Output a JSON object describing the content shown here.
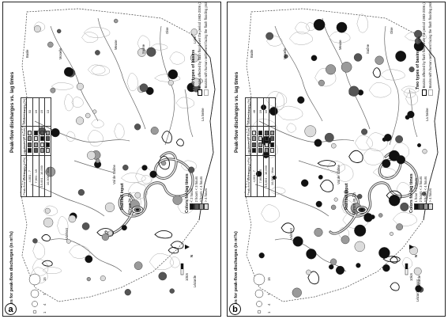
{
  "panels": [
    {
      "id": "a",
      "letter": "a",
      "legend_title": "Peak-flow discharges vs. lag times",
      "rainfall_title": "Rainfall input",
      "rainfall_value": "40mm in 1h",
      "basins_title": "Two types of basins",
      "basins_items": [
        "Basins affected by flash flood over the period 1983-2006 (38)",
        "Basins with human settlement facing the flash flooding problem (148)"
      ],
      "table": {
        "header": [
          "Peak-flow discharges (m³/s)",
          "Lag times (in hours)",
          "Studied basins (%)"
        ],
        "rows": [
          [
            "4,001 - 7",
            "",
            "53"
          ],
          [
            "7,901 - 15",
            "",
            "19"
          ],
          [
            "15,001 - 10,000",
            "",
            "15"
          ],
          [
            "10,000 - Max",
            "",
            "13"
          ]
        ]
      },
      "colors_title": "Colors for lag times",
      "colors_items": [
        "< 2 hours",
        "2 hours < 3 hours",
        "3 hours < 4 hours",
        "> 4 hours"
      ],
      "values_title": "Values for peak-flow discharges (in m³/s)",
      "values_items": [
        "15",
        "7",
        "4",
        "1"
      ],
      "places": [
        "Basle",
        "Moselle",
        "Meuse",
        "Saône",
        "Loire",
        "Val de Saône",
        "Lézarde",
        "Valmont",
        "La Seine",
        "Oise"
      ],
      "north": "N",
      "scale": "10km"
    },
    {
      "id": "b",
      "letter": "b",
      "legend_title": "Peak-flow discharges vs. lag times",
      "rainfall_title": "Rainfall input",
      "rainfall_value": "90mm in 1h",
      "basins_title": "Two types of basins",
      "basins_items": [
        "Basins affected by flash flood over the period 1983-2006 (38)",
        "Basins with human settlement facing the flash flooding problem (148)"
      ],
      "table": {
        "header": [
          "Peak-flow discharges (m³/s)",
          "Lag times (in hours)",
          "Studied basins (%)"
        ],
        "rows": [
          [
            "4,001 - 7",
            "",
            "48"
          ],
          [
            "7,901 - 15",
            "",
            "19"
          ],
          [
            "15,001 - 10,000",
            "",
            "10"
          ],
          [
            "10,000 - Max",
            "",
            "23"
          ]
        ]
      },
      "colors_title": "Colors for lag times",
      "colors_items": [
        "1 hour < 2 hours",
        "2 hours < 3 hours",
        "3 hours < 4 hours",
        "> 4 hours"
      ],
      "values_title": "Values for peak-flow discharges (in m³/s)",
      "values_items": [
        "15",
        "7",
        "4",
        "1"
      ],
      "places": [
        "Basle",
        "Moselle",
        "Meuse",
        "Saône",
        "Loire",
        "Val de Saône",
        "Lézarde",
        "Valmont",
        "La Seine",
        "Oise",
        "Lézarde amont"
      ],
      "north": "N",
      "scale": "10km"
    }
  ],
  "lag_colors": {
    "lt2": "#111111",
    "h2_3": "#555555",
    "h3_4": "#9a9a9a",
    "gt4": "#dcdcdc"
  }
}
